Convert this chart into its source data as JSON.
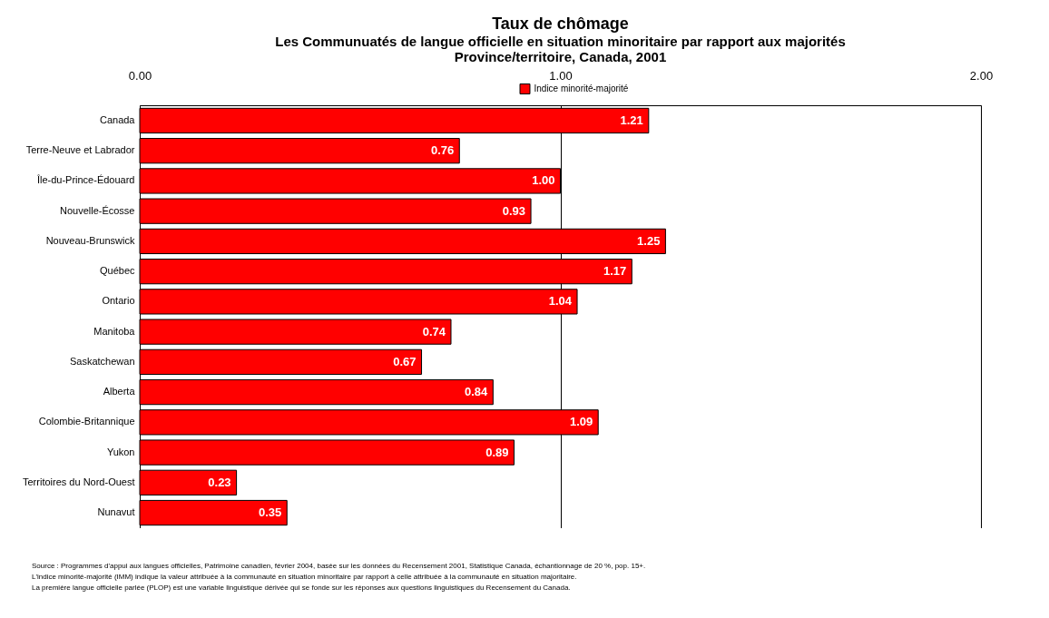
{
  "chart_data": {
    "type": "bar",
    "orientation": "horizontal",
    "title": "Taux de chômage",
    "subtitle": "Les Communuatés de langue officielle en situation minoritaire par rapport aux majorités\nProvince/territoire, Canada, 2001",
    "categories": [
      "Canada",
      "Terre-Neuve et Labrador",
      "Île-du-Prince-Édouard",
      "Nouvelle-Écosse",
      "Nouveau-Brunswick",
      "Québec",
      "Ontario",
      "Manitoba",
      "Saskatchewan",
      "Alberta",
      "Colombie-Britannique",
      "Yukon",
      "Territoires du Nord-Ouest",
      "Nunavut"
    ],
    "series": [
      {
        "name": "Indice minorité-majorité",
        "color": "#ff0000",
        "values": [
          1.21,
          0.76,
          1.0,
          0.93,
          1.25,
          1.17,
          1.04,
          0.74,
          0.67,
          0.84,
          1.09,
          0.89,
          0.23,
          0.35
        ]
      }
    ],
    "xlim": [
      0,
      2
    ],
    "xticks": [
      {
        "value": 0,
        "label": "0.00"
      },
      {
        "value": 1,
        "label": "1.00"
      },
      {
        "value": 2,
        "label": "2.00"
      }
    ],
    "grid": "x",
    "legend": "top",
    "value_labels": [
      "1.21",
      "0.76",
      "1.00",
      "0.93",
      "1.25",
      "1.17",
      "1.04",
      "0.74",
      "0.67",
      "0.84",
      "1.09",
      "0.89",
      "0.23",
      "0.35"
    ],
    "annotations": [
      "Source : Programmes d'appui aux langues officielles, Patrimoine canadien, février 2004, basée sur les données du Recensement 2001, Statistique Canada, échantionnage de 20 %, pop. 15+.",
      "L'indice minorité-majorité (IMM) indique la valeur attribuée à la communauté en situation minoritaire par rapport à celle attribuée à la communauté en situation majoritaire.",
      "La première langue officielle parlée (PLOP) est une variable linguistique dérivée qui se fonde sur les réponses aux questions linguistiques du Recensement du Canada."
    ]
  }
}
